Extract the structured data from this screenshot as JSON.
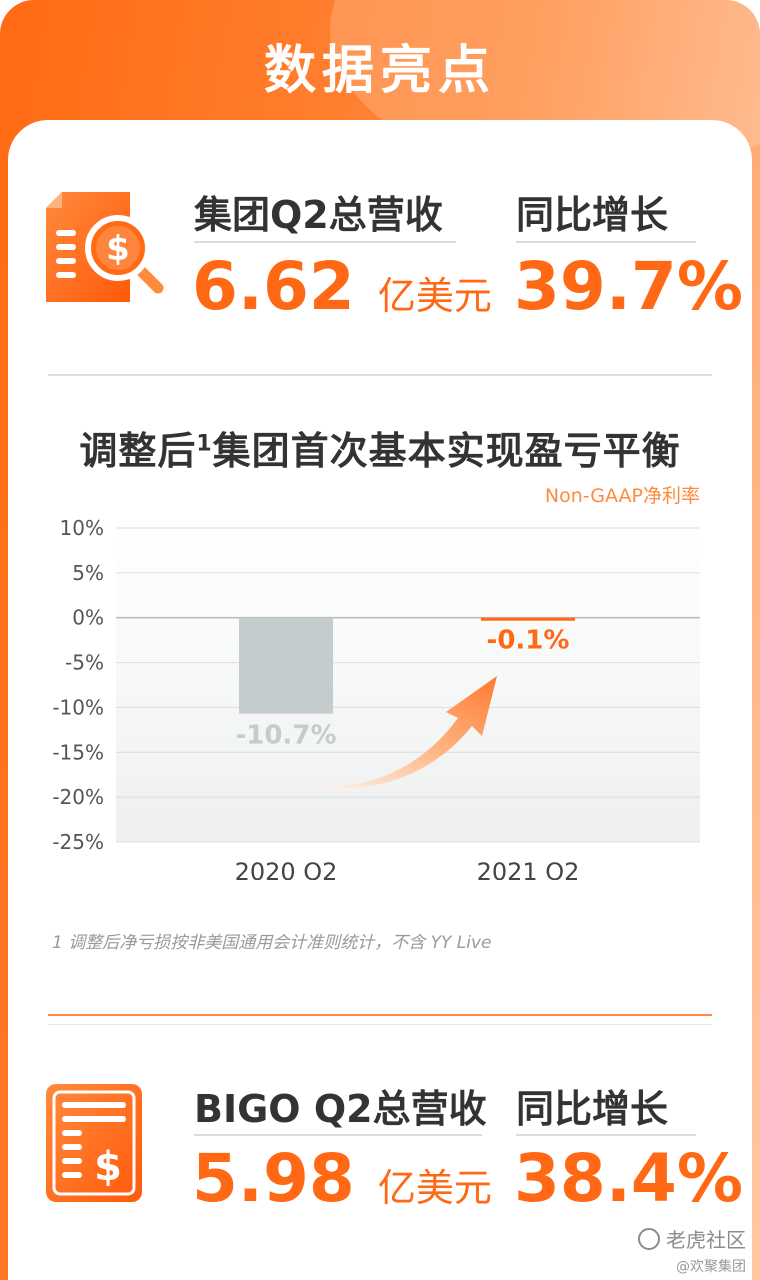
{
  "header": {
    "title": "数据亮点"
  },
  "group": {
    "revenue_label": "集团Q2总营收",
    "revenue_value": "6.62",
    "revenue_unit": "亿美元",
    "growth_label": "同比增长",
    "growth_value": "39.7%"
  },
  "chart_title": {
    "main": "调整后",
    "sup": "1",
    "rest": "集团首次基本实现盈亏平衡"
  },
  "chart_data": {
    "type": "bar",
    "title": "调整后1集团首次基本实现盈亏平衡",
    "series_label": "Non-GAAP净利率",
    "categories": [
      "2020 Q2",
      "2021 Q2"
    ],
    "values": [
      -10.7,
      -0.1
    ],
    "value_labels": [
      "-10.7%",
      "-0.1%"
    ],
    "ylim": [
      -25,
      10
    ],
    "yticks": [
      10,
      5,
      0,
      -5,
      -10,
      -15,
      -20,
      -25
    ],
    "ytick_labels": [
      "10%",
      "5%",
      "0%",
      "-5%",
      "-10%",
      "-15%",
      "-20%",
      "-25%"
    ],
    "grid": true,
    "colors": {
      "bar_2020": "#c4cccd",
      "bar_2021": "#ff6814",
      "label_2020": "#c4cccd",
      "label_2021": "#ff6814",
      "arrow": "#ff8a4a"
    }
  },
  "footnote": "1  调整后净亏损按非美国通用会计准则统计，不含 YY Live",
  "bigo": {
    "revenue_label": "BIGO Q2总营收",
    "revenue_value": "5.98",
    "revenue_unit": "亿美元",
    "growth_label": "同比增长",
    "growth_value": "38.4%"
  },
  "watermark": {
    "line1": "老虎社区",
    "line2": "@欢聚集团"
  },
  "icons": {
    "top": "document-dollar-search-icon",
    "bottom": "receipt-dollar-icon"
  },
  "colors": {
    "accent": "#ff6814",
    "header_from": "#ff6a13",
    "header_to": "#ffc8a4"
  }
}
